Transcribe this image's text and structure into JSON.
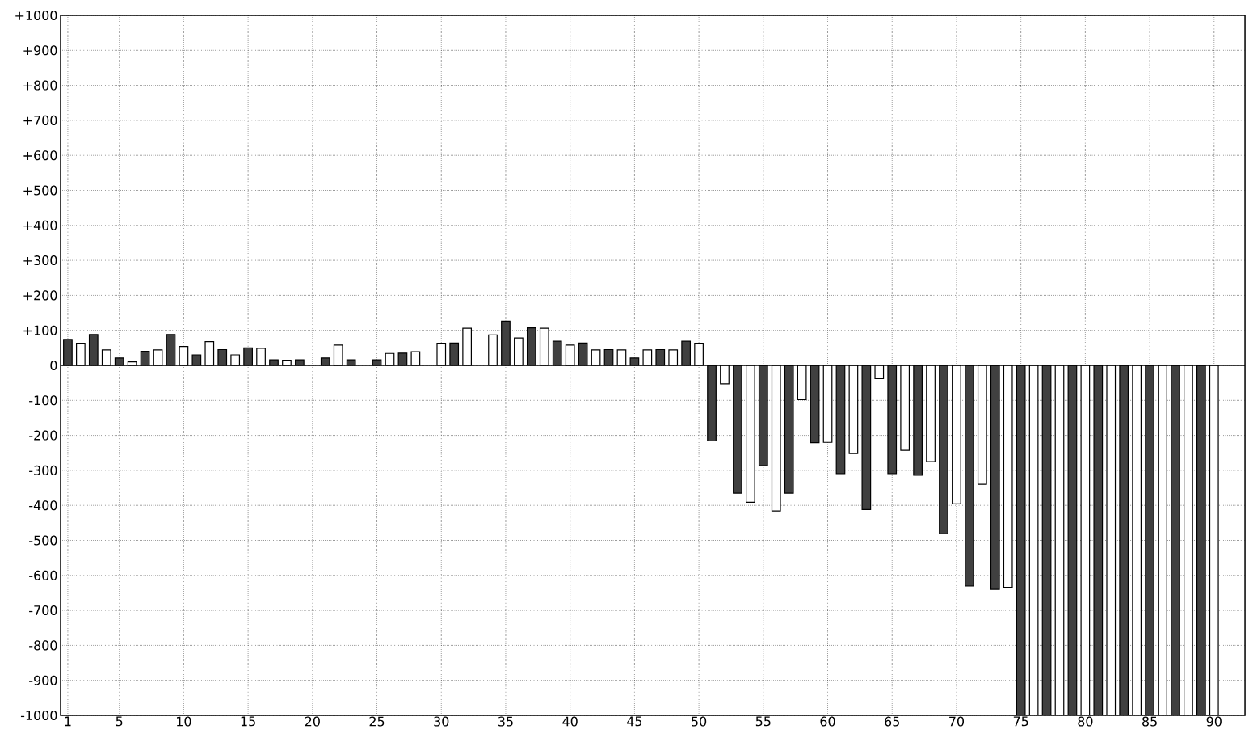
{
  "chart_data": {
    "type": "bar",
    "x": [
      1,
      2,
      3,
      4,
      5,
      6,
      7,
      8,
      9,
      10,
      11,
      12,
      13,
      14,
      15,
      16,
      17,
      18,
      19,
      20,
      21,
      22,
      23,
      24,
      25,
      26,
      27,
      28,
      29,
      30,
      31,
      32,
      33,
      34,
      35,
      36,
      37,
      38,
      39,
      40,
      41,
      42,
      43,
      44,
      45,
      46,
      47,
      48,
      49,
      50,
      51,
      52,
      53,
      54,
      55,
      56,
      57,
      58,
      59,
      60,
      61,
      62,
      63,
      64,
      65,
      66,
      67,
      68,
      69,
      70,
      71,
      72,
      73,
      74,
      75,
      76,
      77,
      78,
      79,
      80,
      81,
      82,
      83,
      84,
      85,
      86,
      87,
      88,
      89,
      90
    ],
    "values": [
      74,
      63,
      88,
      44,
      21,
      10,
      40,
      44,
      88,
      54,
      30,
      68,
      45,
      30,
      50,
      49,
      16,
      15,
      16,
      null,
      21,
      58,
      16,
      null,
      16,
      34,
      35,
      39,
      null,
      63,
      64,
      106,
      null,
      87,
      126,
      78,
      107,
      106,
      69,
      58,
      64,
      44,
      45,
      44,
      21,
      44,
      45,
      44,
      69,
      63,
      -216,
      -53,
      -365,
      -391,
      -286,
      -416,
      -365,
      -98,
      -221,
      -220,
      -309,
      -252,
      -412,
      -38,
      -309,
      -243,
      -314,
      -275,
      -481,
      -396,
      -630,
      -340,
      -640,
      -634,
      -1000,
      -1000,
      -1000,
      -1000,
      -1000,
      -1000,
      -1000,
      -1000,
      -1000,
      -1000,
      -1000,
      -1000,
      -1000,
      -1000,
      -1000,
      -1000
    ],
    "colors": [
      "#404040",
      "#ffffff",
      "#404040",
      "#ffffff",
      "#404040",
      "#ffffff",
      "#404040",
      "#ffffff",
      "#404040",
      "#ffffff",
      "#404040",
      "#ffffff",
      "#404040",
      "#ffffff",
      "#404040",
      "#ffffff",
      "#404040",
      "#ffffff",
      "#404040",
      "#ffffff",
      "#404040",
      "#ffffff",
      "#404040",
      "#ffffff",
      "#404040",
      "#ffffff",
      "#404040",
      "#ffffff",
      "#404040",
      "#ffffff",
      "#404040",
      "#ffffff",
      "#404040",
      "#ffffff",
      "#404040",
      "#ffffff",
      "#404040",
      "#ffffff",
      "#404040",
      "#ffffff",
      "#404040",
      "#ffffff",
      "#404040",
      "#ffffff",
      "#404040",
      "#ffffff",
      "#404040",
      "#ffffff",
      "#404040",
      "#ffffff",
      "#404040",
      "#ffffff",
      "#404040",
      "#ffffff",
      "#404040",
      "#ffffff",
      "#404040",
      "#ffffff",
      "#404040",
      "#ffffff",
      "#404040",
      "#ffffff",
      "#404040",
      "#ffffff",
      "#404040",
      "#ffffff",
      "#404040",
      "#ffffff",
      "#404040",
      "#ffffff",
      "#404040",
      "#ffffff",
      "#404040",
      "#ffffff",
      "#404040",
      "#ffffff",
      "#404040",
      "#ffffff",
      "#404040",
      "#ffffff",
      "#404040",
      "#ffffff",
      "#404040",
      "#ffffff",
      "#404040",
      "#ffffff",
      "#404040",
      "#ffffff",
      "#404040",
      "#ffffff"
    ],
    "xlim": [
      0.44,
      92.4
    ],
    "xticks": [
      1,
      5,
      10,
      15,
      20,
      25,
      30,
      35,
      40,
      45,
      50,
      55,
      60,
      65,
      70,
      75,
      80,
      85,
      90
    ],
    "ylim": [
      -1000,
      1000
    ],
    "yticks": [
      -1000,
      -900,
      -800,
      -700,
      -600,
      -500,
      -400,
      -300,
      -200,
      -100,
      0,
      {
        "value": 100,
        "label": "+100"
      },
      {
        "value": 200,
        "label": "+200"
      },
      {
        "value": 300,
        "label": "+300"
      },
      {
        "value": 400,
        "label": "+400"
      },
      {
        "value": 500,
        "label": "+500"
      },
      {
        "value": 600,
        "label": "+600"
      },
      {
        "value": 700,
        "label": "+700"
      },
      {
        "value": 800,
        "label": "+800"
      },
      {
        "value": 900,
        "label": "+900"
      },
      {
        "value": 1000,
        "label": "+1000"
      }
    ],
    "grid": true
  }
}
